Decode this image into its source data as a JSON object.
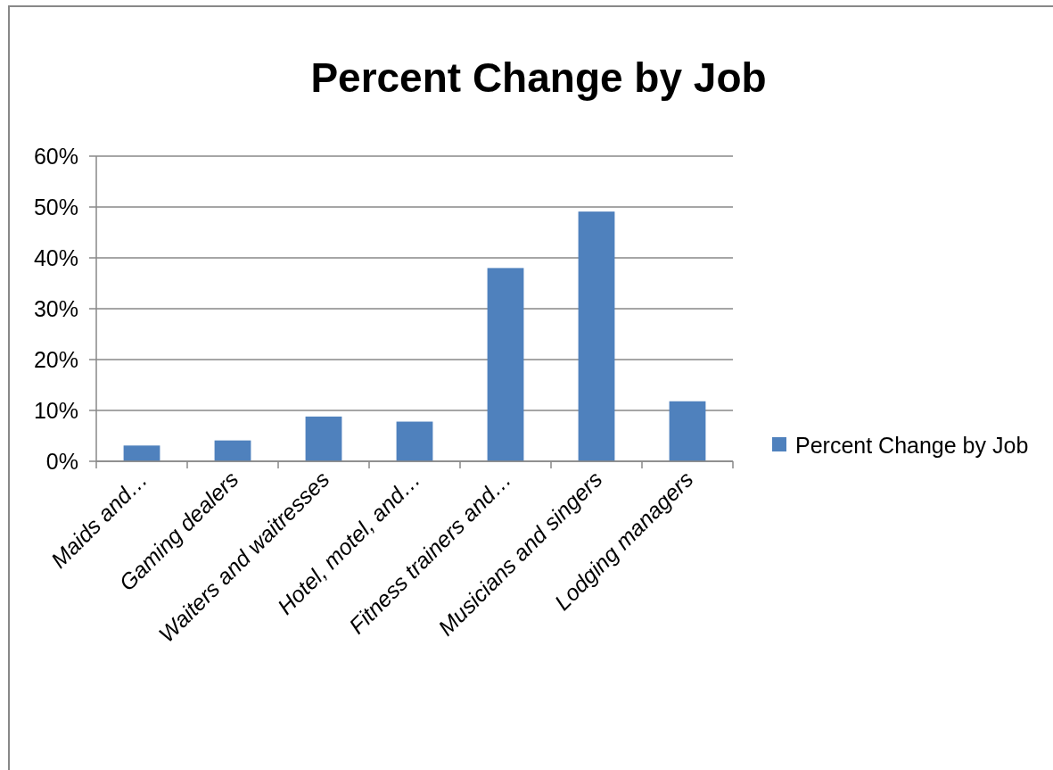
{
  "chart_data": {
    "type": "bar",
    "title": "Percent Change by Job",
    "categories": [
      "Maids and…",
      "Gaming dealers",
      "Waiters and waitresses",
      "Hotel, motel, and…",
      "Fitness trainers and…",
      "Musicians and singers",
      "Lodging managers"
    ],
    "series": [
      {
        "name": "Percent Change by Job",
        "color": "#4f81bd",
        "values": [
          3.1,
          4.1,
          8.8,
          7.8,
          38.0,
          49.1,
          11.8
        ]
      }
    ],
    "ylim": [
      0,
      60
    ],
    "yticks": [
      {
        "value": 0,
        "label": "0%"
      },
      {
        "value": 10,
        "label": "10%"
      },
      {
        "value": 20,
        "label": "20%"
      },
      {
        "value": 30,
        "label": "30%"
      },
      {
        "value": 40,
        "label": "40%"
      },
      {
        "value": 50,
        "label": "50%"
      },
      {
        "value": 60,
        "label": "60%"
      }
    ],
    "grid": "y",
    "legend": "right"
  }
}
